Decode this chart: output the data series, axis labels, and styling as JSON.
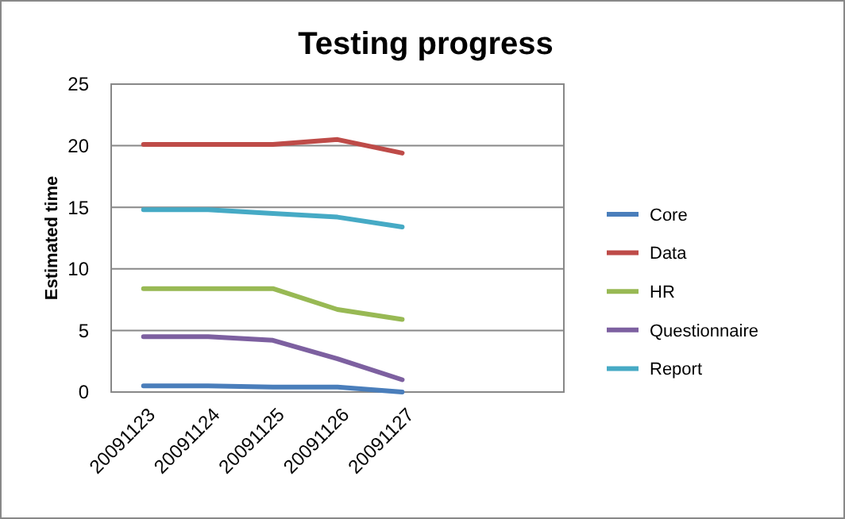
{
  "chart_data": {
    "type": "line",
    "title": "Testing progress",
    "ylabel": "Estimated time",
    "categories": [
      "20091123",
      "20091124",
      "20091125",
      "20091126",
      "20091127",
      null,
      null
    ],
    "ylim": [
      0,
      25
    ],
    "yticks": [
      0,
      5,
      10,
      15,
      20,
      25
    ],
    "grid": "y",
    "legend": "right",
    "marker": "none",
    "line_style": "solid",
    "series": [
      {
        "name": "Core",
        "color": "#4a7ebb",
        "values": [
          0.5,
          0.5,
          0.4,
          0.4,
          0,
          null,
          null
        ]
      },
      {
        "name": "Data",
        "color": "#be4b48",
        "values": [
          20.1,
          20.1,
          20.1,
          20.5,
          19.4,
          null,
          null
        ]
      },
      {
        "name": "HR",
        "color": "#98b954",
        "values": [
          8.4,
          8.4,
          8.4,
          6.7,
          5.9,
          null,
          null
        ]
      },
      {
        "name": "Questionnaire",
        "color": "#7d60a0",
        "values": [
          4.5,
          4.5,
          4.2,
          2.7,
          1.0,
          null,
          null
        ]
      },
      {
        "name": "Report",
        "color": "#46aac5",
        "values": [
          14.8,
          14.8,
          14.5,
          14.2,
          13.4,
          null,
          null
        ]
      }
    ]
  }
}
